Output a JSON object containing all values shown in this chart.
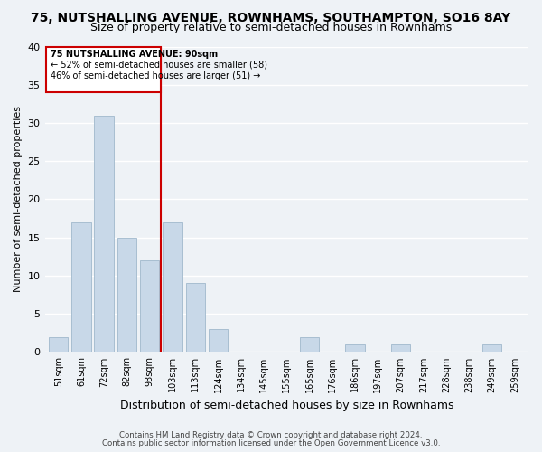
{
  "title": "75, NUTSHALLING AVENUE, ROWNHAMS, SOUTHAMPTON, SO16 8AY",
  "subtitle": "Size of property relative to semi-detached houses in Rownhams",
  "xlabel": "Distribution of semi-detached houses by size in Rownhams",
  "ylabel": "Number of semi-detached properties",
  "categories": [
    "51sqm",
    "61sqm",
    "72sqm",
    "82sqm",
    "93sqm",
    "103sqm",
    "113sqm",
    "124sqm",
    "134sqm",
    "145sqm",
    "155sqm",
    "165sqm",
    "176sqm",
    "186sqm",
    "197sqm",
    "207sqm",
    "217sqm",
    "228sqm",
    "238sqm",
    "249sqm",
    "259sqm"
  ],
  "values": [
    2,
    17,
    31,
    15,
    12,
    17,
    9,
    3,
    0,
    0,
    0,
    2,
    0,
    1,
    0,
    1,
    0,
    0,
    0,
    1,
    0
  ],
  "bar_color": "#c8d8e8",
  "bar_edgecolor": "#a0b8cc",
  "vline_color": "#cc0000",
  "annotation_title": "75 NUTSHALLING AVENUE: 90sqm",
  "annotation_line1": "← 52% of semi-detached houses are smaller (58)",
  "annotation_line2": "46% of semi-detached houses are larger (51) →",
  "annotation_box_color": "#cc0000",
  "ylim": [
    0,
    40
  ],
  "yticks": [
    0,
    5,
    10,
    15,
    20,
    25,
    30,
    35,
    40
  ],
  "footnote1": "Contains HM Land Registry data © Crown copyright and database right 2024.",
  "footnote2": "Contains public sector information licensed under the Open Government Licence v3.0.",
  "title_fontsize": 10,
  "subtitle_fontsize": 9,
  "background_color": "#eef2f6"
}
